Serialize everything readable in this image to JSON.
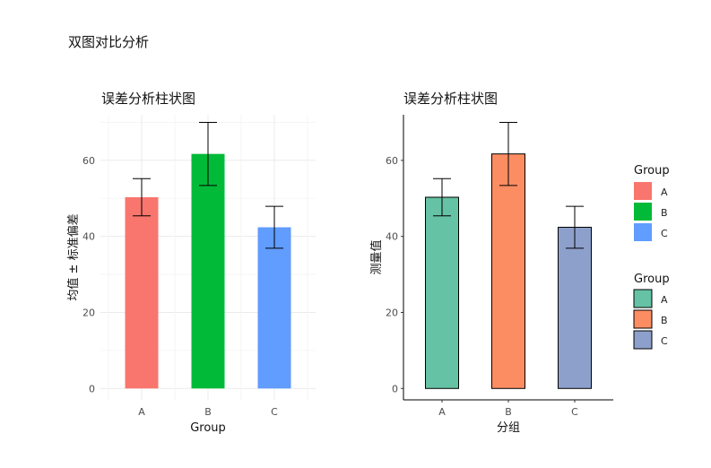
{
  "page_title": "双图对比分析",
  "chart_data": [
    {
      "type": "bar",
      "title": "误差分析柱状图",
      "xlabel": "Group",
      "ylabel": "均值 ± 标准偏差",
      "categories": [
        "A",
        "B",
        "C"
      ],
      "values": [
        50.3,
        61.7,
        42.4
      ],
      "errors": [
        4.9,
        8.3,
        5.5
      ],
      "ylim": [
        -3,
        72
      ],
      "yticks": [
        0,
        20,
        40,
        60
      ],
      "colors": [
        "#F8766D",
        "#00BA38",
        "#619CFF"
      ],
      "bar_outline": false,
      "grid": true,
      "legend": {
        "title": "Group",
        "position": "right",
        "items": [
          "A",
          "B",
          "C"
        ]
      }
    },
    {
      "type": "bar",
      "title": "误差分析柱状图",
      "xlabel": "分组",
      "ylabel": "测量值",
      "categories": [
        "A",
        "B",
        "C"
      ],
      "values": [
        50.3,
        61.7,
        42.4
      ],
      "errors": [
        4.9,
        8.3,
        5.5
      ],
      "ylim": [
        -3,
        72
      ],
      "yticks": [
        0,
        20,
        40,
        60
      ],
      "colors": [
        "#66C2A5",
        "#FC8D62",
        "#8DA0CB"
      ],
      "bar_outline": true,
      "grid": false,
      "legend": {
        "title": "Group",
        "position": "right",
        "items": [
          "A",
          "B",
          "C"
        ]
      }
    }
  ]
}
